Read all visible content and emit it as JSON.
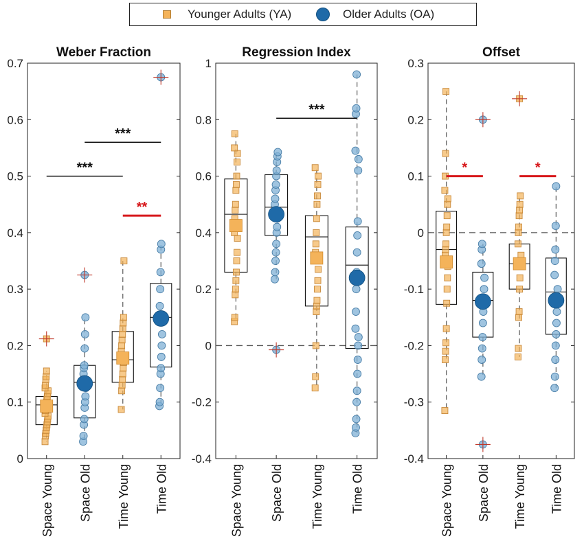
{
  "legend": {
    "ya_label": "Younger Adults (YA)",
    "oa_label": "Older Adults (OA)"
  },
  "colors": {
    "ya_fill": "#f4b35a",
    "ya_edge": "#c88a3c",
    "oa_fill": "#1f6aa8",
    "oa_point": "#7fb0d6",
    "outlier": "#c0392b",
    "significance": "#d7191c"
  },
  "chart_data": [
    {
      "type": "box",
      "title": "Weber Fraction",
      "categories": [
        "Space Young",
        "Space Old",
        "Time Young",
        "Time Old"
      ],
      "groups": [
        "YA",
        "OA",
        "YA",
        "OA"
      ],
      "ylim": [
        0,
        0.7
      ],
      "yticks": [
        0,
        0.1,
        0.2,
        0.3,
        0.4,
        0.5,
        0.6,
        0.7
      ],
      "ytick_labels": [
        "0",
        "0.1",
        "0.2",
        "0.3",
        "0.4",
        "0.5",
        "0.6",
        "0.7"
      ],
      "zero_line": false,
      "boxes": [
        {
          "q1": 0.06,
          "median": 0.095,
          "q3": 0.11,
          "whisker_low": 0.03,
          "whisker_high": 0.155,
          "mean": 0.093,
          "points": [
            0.03,
            0.04,
            0.045,
            0.05,
            0.055,
            0.06,
            0.065,
            0.07,
            0.075,
            0.08,
            0.085,
            0.09,
            0.095,
            0.1,
            0.105,
            0.11,
            0.115,
            0.12,
            0.125,
            0.13,
            0.14,
            0.145,
            0.155
          ],
          "outliers": [
            0.212
          ]
        },
        {
          "q1": 0.072,
          "median": 0.135,
          "q3": 0.165,
          "whisker_low": 0.03,
          "whisker_high": 0.25,
          "mean": 0.133,
          "points": [
            0.03,
            0.04,
            0.06,
            0.07,
            0.09,
            0.1,
            0.11,
            0.125,
            0.13,
            0.14,
            0.15,
            0.16,
            0.165,
            0.195,
            0.22,
            0.25
          ],
          "outliers": [
            0.325
          ]
        },
        {
          "q1": 0.135,
          "median": 0.175,
          "q3": 0.225,
          "whisker_low": 0.087,
          "whisker_high": 0.35,
          "mean": 0.178,
          "points": [
            0.087,
            0.12,
            0.13,
            0.14,
            0.15,
            0.16,
            0.17,
            0.175,
            0.18,
            0.19,
            0.2,
            0.21,
            0.22,
            0.23,
            0.24,
            0.25,
            0.35
          ],
          "outliers": []
        },
        {
          "q1": 0.162,
          "median": 0.25,
          "q3": 0.31,
          "whisker_low": 0.093,
          "whisker_high": 0.38,
          "mean": 0.248,
          "points": [
            0.093,
            0.1,
            0.125,
            0.15,
            0.16,
            0.18,
            0.2,
            0.22,
            0.245,
            0.25,
            0.27,
            0.3,
            0.33,
            0.37,
            0.38
          ],
          "outliers": [
            0.675
          ]
        }
      ],
      "significance": [
        {
          "from": 0,
          "to": 2,
          "y": 0.5,
          "label": "***",
          "color": "#111111"
        },
        {
          "from": 1,
          "to": 3,
          "y": 0.56,
          "label": "***",
          "color": "#111111"
        },
        {
          "from": 2,
          "to": 3,
          "y": 0.43,
          "label": "**",
          "color": "#d7191c"
        }
      ]
    },
    {
      "type": "box",
      "title": "Regression Index",
      "categories": [
        "Space Young",
        "Space Old",
        "Time Young",
        "Time Old"
      ],
      "groups": [
        "YA",
        "OA",
        "YA",
        "OA"
      ],
      "ylim": [
        -0.4,
        1
      ],
      "yticks": [
        -0.4,
        -0.2,
        0,
        0.2,
        0.4,
        0.6,
        0.8,
        1
      ],
      "ytick_labels": [
        "-0.4",
        "-0.2",
        "0",
        "0.2",
        "0.4",
        "0.6",
        "0.8",
        "1"
      ],
      "zero_line": true,
      "boxes": [
        {
          "q1": 0.26,
          "median": 0.465,
          "q3": 0.59,
          "whisker_low": 0.085,
          "whisker_high": 0.75,
          "mean": 0.425,
          "points": [
            0.085,
            0.1,
            0.18,
            0.2,
            0.23,
            0.26,
            0.3,
            0.33,
            0.38,
            0.4,
            0.45,
            0.48,
            0.5,
            0.55,
            0.57,
            0.6,
            0.65,
            0.68,
            0.7,
            0.75
          ],
          "outliers": []
        },
        {
          "q1": 0.39,
          "median": 0.49,
          "q3": 0.605,
          "whisker_low": 0.235,
          "whisker_high": 0.685,
          "mean": 0.465,
          "points": [
            0.235,
            0.26,
            0.3,
            0.33,
            0.36,
            0.4,
            0.42,
            0.45,
            0.47,
            0.5,
            0.52,
            0.55,
            0.57,
            0.6,
            0.62,
            0.65,
            0.67,
            0.685
          ],
          "outliers": [
            -0.015
          ]
        },
        {
          "q1": 0.14,
          "median": 0.385,
          "q3": 0.46,
          "whisker_low": -0.15,
          "whisker_high": 0.63,
          "mean": 0.31,
          "points": [
            -0.15,
            -0.11,
            0,
            0.12,
            0.14,
            0.16,
            0.2,
            0.23,
            0.27,
            0.3,
            0.33,
            0.36,
            0.4,
            0.45,
            0.5,
            0.53,
            0.57,
            0.6,
            0.63
          ],
          "outliers": []
        },
        {
          "q1": -0.01,
          "median": 0.285,
          "q3": 0.42,
          "whisker_low": -0.31,
          "whisker_high": 0.96,
          "mean": 0.24,
          "points": [
            -0.31,
            -0.29,
            -0.26,
            -0.2,
            -0.16,
            -0.1,
            -0.05,
            0,
            0.03,
            0.06,
            0.12,
            0.2,
            0.26,
            0.33,
            0.39,
            0.44,
            0.62,
            0.66,
            0.69,
            0.82,
            0.84,
            0.96
          ],
          "outliers": []
        }
      ],
      "significance": [
        {
          "from": 1,
          "to": 3,
          "y": 0.805,
          "label": "***",
          "color": "#111111"
        }
      ]
    },
    {
      "type": "box",
      "title": "Offset",
      "categories": [
        "Space Young",
        "Space Old",
        "Time Young",
        "Time Old"
      ],
      "groups": [
        "YA",
        "OA",
        "YA",
        "OA"
      ],
      "ylim": [
        -0.4,
        0.3
      ],
      "yticks": [
        -0.4,
        -0.3,
        -0.2,
        -0.1,
        0,
        0.1,
        0.2,
        0.3
      ],
      "ytick_labels": [
        "-0.4",
        "-0.3",
        "-0.2",
        "-0.1",
        "0",
        "0.1",
        "0.2",
        "0.3"
      ],
      "zero_line": true,
      "boxes": [
        {
          "q1": -0.127,
          "median": -0.03,
          "q3": 0.038,
          "whisker_low": -0.315,
          "whisker_high": 0.25,
          "mean": -0.052,
          "points": [
            -0.315,
            -0.225,
            -0.21,
            -0.195,
            -0.17,
            -0.125,
            -0.1,
            -0.08,
            -0.06,
            -0.05,
            -0.04,
            -0.03,
            -0.02,
            0,
            0.01,
            0.03,
            0.05,
            0.06,
            0.075,
            0.1,
            0.14,
            0.25
          ],
          "outliers": []
        },
        {
          "q1": -0.185,
          "median": -0.12,
          "q3": -0.07,
          "whisker_low": -0.255,
          "whisker_high": -0.02,
          "mean": -0.122,
          "points": [
            -0.255,
            -0.225,
            -0.205,
            -0.185,
            -0.16,
            -0.14,
            -0.12,
            -0.1,
            -0.08,
            -0.055,
            -0.03,
            -0.02
          ],
          "outliers": [
            0.2,
            -0.375
          ]
        },
        {
          "q1": -0.1,
          "median": -0.055,
          "q3": -0.02,
          "whisker_low": -0.22,
          "whisker_high": 0.065,
          "mean": -0.055,
          "points": [
            -0.22,
            -0.205,
            -0.15,
            -0.14,
            -0.1,
            -0.08,
            -0.06,
            -0.05,
            -0.04,
            -0.02,
            0,
            0.01,
            0.03,
            0.04,
            0.05,
            0.065
          ],
          "outliers": [
            0.237
          ]
        },
        {
          "q1": -0.18,
          "median": -0.105,
          "q3": -0.045,
          "whisker_low": -0.275,
          "whisker_high": 0.082,
          "mean": -0.12,
          "points": [
            -0.275,
            -0.255,
            -0.225,
            -0.2,
            -0.18,
            -0.16,
            -0.14,
            -0.12,
            -0.1,
            -0.075,
            -0.05,
            -0.03,
            0.012,
            0.082
          ],
          "outliers": []
        }
      ],
      "significance": [
        {
          "from": 0,
          "to": 1,
          "y": 0.1,
          "label": "*",
          "color": "#d7191c"
        },
        {
          "from": 2,
          "to": 3,
          "y": 0.1,
          "label": "*",
          "color": "#d7191c"
        }
      ]
    }
  ]
}
